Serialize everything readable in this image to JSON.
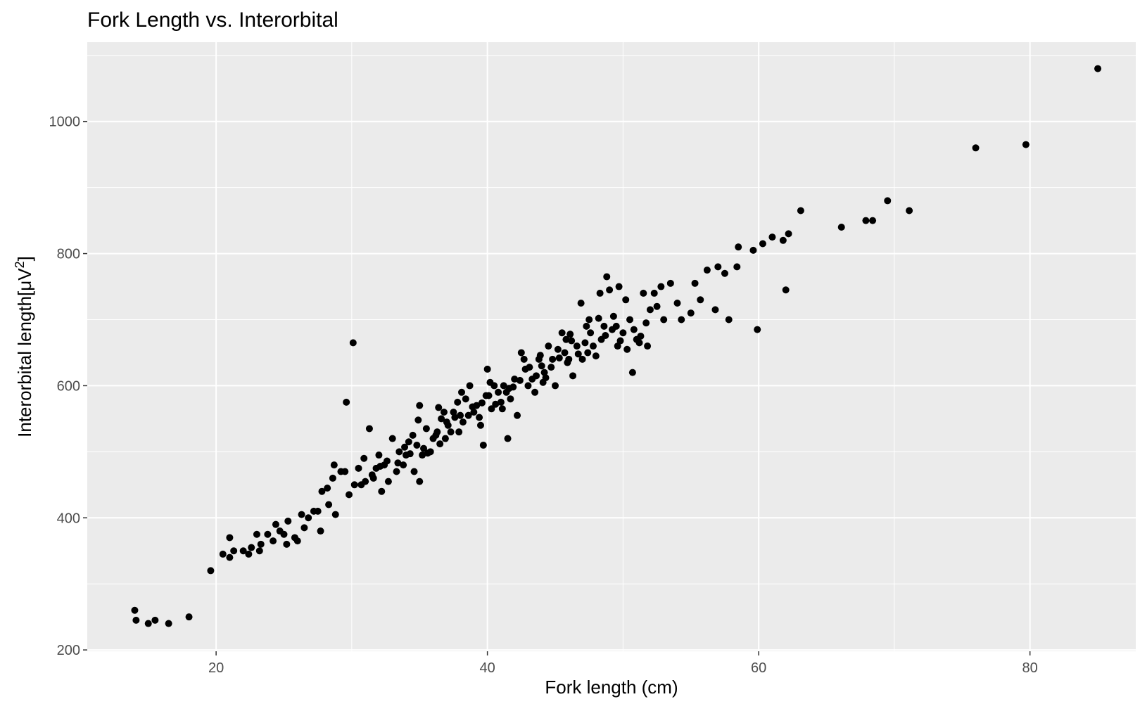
{
  "chart_data": {
    "type": "scatter",
    "title": "Fork Length vs. Interorbital",
    "xlabel": "Fork length (cm)",
    "ylabel": {
      "main": "Interorbital length",
      "unit_open": "[",
      "unit_base": "μV",
      "unit_sup": "2",
      "unit_close": "]"
    },
    "xlim": [
      10.5,
      87.8
    ],
    "ylim": [
      198,
      1120
    ],
    "x_ticks": [
      20,
      40,
      60,
      80
    ],
    "y_ticks": [
      200,
      400,
      600,
      800,
      1000
    ],
    "grid": true,
    "panel_color": "#ebebeb",
    "grid_color": "#ffffff",
    "point_color": "#000000",
    "points": [
      [
        14,
        260
      ],
      [
        14.1,
        245
      ],
      [
        15,
        240
      ],
      [
        15.5,
        245
      ],
      [
        16.5,
        240
      ],
      [
        18,
        250
      ],
      [
        19.6,
        320
      ],
      [
        20.5,
        345
      ],
      [
        21,
        340
      ],
      [
        21,
        370
      ],
      [
        21.3,
        350
      ],
      [
        22,
        350
      ],
      [
        22.4,
        345
      ],
      [
        22.6,
        355
      ],
      [
        23,
        375
      ],
      [
        23.2,
        350
      ],
      [
        23.3,
        360
      ],
      [
        23.8,
        375
      ],
      [
        24.2,
        365
      ],
      [
        24.4,
        390
      ],
      [
        24.7,
        380
      ],
      [
        25,
        375
      ],
      [
        25.2,
        360
      ],
      [
        25.3,
        395
      ],
      [
        25.8,
        370
      ],
      [
        26,
        365
      ],
      [
        26.3,
        405
      ],
      [
        26.5,
        385
      ],
      [
        26.8,
        400
      ],
      [
        27.2,
        410
      ],
      [
        27.5,
        410
      ],
      [
        27.7,
        380
      ],
      [
        27.8,
        440
      ],
      [
        28.2,
        445
      ],
      [
        28.3,
        420
      ],
      [
        28.6,
        460
      ],
      [
        28.7,
        480
      ],
      [
        28.8,
        405
      ],
      [
        29.2,
        470
      ],
      [
        29.5,
        470
      ],
      [
        29.6,
        575
      ],
      [
        29.8,
        435
      ],
      [
        30.1,
        665
      ],
      [
        30.2,
        450
      ],
      [
        30.5,
        475
      ],
      [
        30.9,
        490
      ],
      [
        31,
        455
      ],
      [
        31.3,
        535
      ],
      [
        31.5,
        465
      ],
      [
        31.8,
        475
      ],
      [
        32,
        495
      ],
      [
        32.2,
        440
      ],
      [
        32.4,
        480
      ],
      [
        32.7,
        455
      ],
      [
        33,
        520
      ],
      [
        33.3,
        470
      ],
      [
        33.5,
        500
      ],
      [
        33.8,
        480
      ],
      [
        34,
        495
      ],
      [
        34.2,
        515
      ],
      [
        34.5,
        525
      ],
      [
        34.8,
        510
      ],
      [
        35,
        570
      ],
      [
        35,
        455
      ],
      [
        35.2,
        495
      ],
      [
        35.5,
        535
      ],
      [
        35.8,
        500
      ],
      [
        36,
        520
      ],
      [
        36.3,
        530
      ],
      [
        36.6,
        550
      ],
      [
        36.8,
        560
      ],
      [
        37,
        545
      ],
      [
        37.3,
        530
      ],
      [
        37.5,
        560
      ],
      [
        37.8,
        575
      ],
      [
        38,
        555
      ],
      [
        38.4,
        580
      ],
      [
        38.7,
        600
      ],
      [
        39,
        560
      ],
      [
        39.2,
        570
      ],
      [
        39.5,
        540
      ],
      [
        39.7,
        510
      ],
      [
        40,
        625
      ],
      [
        40.1,
        585
      ],
      [
        40.3,
        565
      ],
      [
        40.5,
        600
      ],
      [
        40.8,
        590
      ],
      [
        41,
        575
      ],
      [
        41.2,
        600
      ],
      [
        41.5,
        520
      ],
      [
        41.7,
        580
      ],
      [
        42,
        610
      ],
      [
        42.2,
        555
      ],
      [
        42.5,
        650
      ],
      [
        42.8,
        625
      ],
      [
        43,
        600
      ],
      [
        43.3,
        610
      ],
      [
        43.5,
        590
      ],
      [
        43.8,
        640
      ],
      [
        44,
        630
      ],
      [
        44.2,
        620
      ],
      [
        44.5,
        660
      ],
      [
        44.8,
        640
      ],
      [
        45,
        600
      ],
      [
        45.2,
        655
      ],
      [
        45.5,
        680
      ],
      [
        45.8,
        670
      ],
      [
        46,
        640
      ],
      [
        46.3,
        615
      ],
      [
        46.6,
        660
      ],
      [
        46.9,
        725
      ],
      [
        47,
        640
      ],
      [
        47.3,
        690
      ],
      [
        47.5,
        700
      ],
      [
        47.8,
        660
      ],
      [
        48,
        645
      ],
      [
        48.3,
        740
      ],
      [
        48.6,
        690
      ],
      [
        48.8,
        765
      ],
      [
        49,
        745
      ],
      [
        49.3,
        705
      ],
      [
        49.5,
        690
      ],
      [
        49.7,
        750
      ],
      [
        50,
        680
      ],
      [
        50.2,
        730
      ],
      [
        50.5,
        700
      ],
      [
        50.7,
        620
      ],
      [
        51,
        670
      ],
      [
        51.3,
        675
      ],
      [
        51.5,
        740
      ],
      [
        51.7,
        695
      ],
      [
        52,
        715
      ],
      [
        52.3,
        740
      ],
      [
        52.5,
        720
      ],
      [
        52.8,
        750
      ],
      [
        53,
        700
      ],
      [
        53.5,
        755
      ],
      [
        54,
        725
      ],
      [
        54.3,
        700
      ],
      [
        55,
        710
      ],
      [
        55.3,
        755
      ],
      [
        55.7,
        730
      ],
      [
        56.2,
        775
      ],
      [
        56.8,
        715
      ],
      [
        57,
        780
      ],
      [
        57.5,
        770
      ],
      [
        57.8,
        700
      ],
      [
        58.4,
        780
      ],
      [
        58.5,
        810
      ],
      [
        59.6,
        805
      ],
      [
        59.9,
        685
      ],
      [
        60.3,
        815
      ],
      [
        61,
        825
      ],
      [
        61.8,
        820
      ],
      [
        62,
        745
      ],
      [
        62.2,
        830
      ],
      [
        63.1,
        865
      ],
      [
        66.1,
        840
      ],
      [
        67.9,
        850
      ],
      [
        68.4,
        850
      ],
      [
        69.5,
        880
      ],
      [
        71.1,
        865
      ],
      [
        76,
        960
      ],
      [
        79.7,
        965
      ],
      [
        85,
        1080
      ],
      [
        33.4,
        483
      ],
      [
        33.9,
        507
      ],
      [
        34.3,
        497
      ],
      [
        34.6,
        470
      ],
      [
        35.3,
        505
      ],
      [
        35.6,
        498
      ],
      [
        36.2,
        525
      ],
      [
        36.5,
        512
      ],
      [
        37.1,
        540
      ],
      [
        37.6,
        552
      ],
      [
        38.2,
        545
      ],
      [
        38.9,
        568
      ],
      [
        39.4,
        552
      ],
      [
        40.6,
        572
      ],
      [
        41.1,
        565
      ],
      [
        41.4,
        590
      ],
      [
        41.9,
        598
      ],
      [
        42.4,
        608
      ],
      [
        43.1,
        628
      ],
      [
        43.6,
        615
      ],
      [
        44.3,
        612
      ],
      [
        44.7,
        628
      ],
      [
        45.3,
        642
      ],
      [
        45.7,
        650
      ],
      [
        46.2,
        668
      ],
      [
        46.7,
        648
      ],
      [
        47.2,
        665
      ],
      [
        47.6,
        680
      ],
      [
        48.2,
        702
      ],
      [
        48.7,
        676
      ],
      [
        49.2,
        685
      ],
      [
        49.8,
        668
      ],
      [
        50.3,
        655
      ],
      [
        50.8,
        685
      ],
      [
        51.2,
        665
      ],
      [
        51.8,
        660
      ],
      [
        30.7,
        450
      ],
      [
        31.6,
        460
      ],
      [
        32.1,
        478
      ],
      [
        32.6,
        486
      ],
      [
        36.9,
        520
      ],
      [
        37.9,
        530
      ],
      [
        38.6,
        555
      ],
      [
        39.9,
        585
      ],
      [
        40.2,
        605
      ],
      [
        42.7,
        640
      ],
      [
        44.1,
        605
      ],
      [
        45.9,
        635
      ],
      [
        47.4,
        650
      ],
      [
        49.6,
        660
      ],
      [
        34.9,
        548
      ],
      [
        36.4,
        567
      ],
      [
        38.1,
        590
      ],
      [
        39.6,
        574
      ],
      [
        41.6,
        596
      ],
      [
        43.9,
        646
      ],
      [
        46.1,
        678
      ],
      [
        48.4,
        670
      ]
    ]
  }
}
